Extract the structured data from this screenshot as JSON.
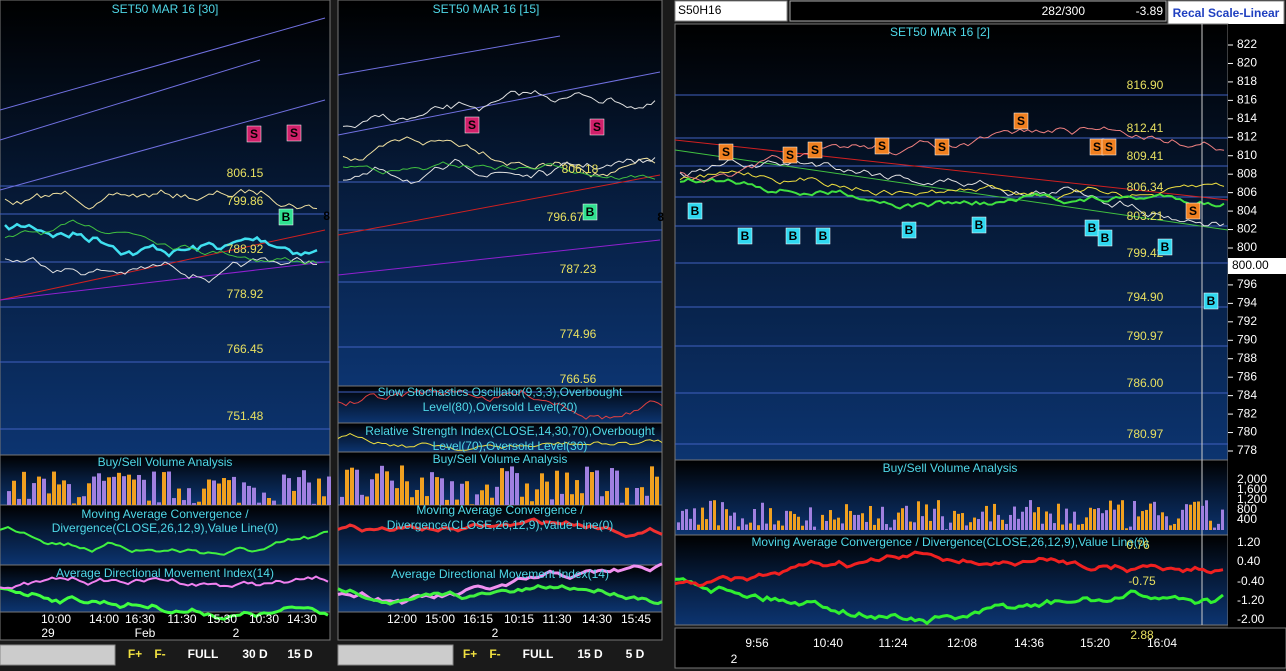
{
  "toolbar": {
    "symbol": "S50H16",
    "count": "282/300",
    "change": "-3.89",
    "scale_button": "Recal Scale-Linear"
  },
  "panels": [
    {
      "title": "SET50 MAR 16  [30]",
      "levels": [
        "806.15",
        "799.86",
        "788.92",
        "778.92",
        "766.45",
        "751.48"
      ],
      "signals": [
        "S",
        "S",
        "B"
      ],
      "indicators": [
        "Buy/Sell Volume Analysis",
        "Moving Average Convergence /",
        "Divergence(CLOSE,26,12,9),Value Line(0)",
        "Average Directional Movement Index(14)"
      ],
      "price_tag": "8",
      "times": [
        "10:00",
        "14:00",
        "16:30",
        "11:30",
        "15:30",
        "10:30",
        "14:30"
      ],
      "dates": [
        "29",
        "Feb",
        "2"
      ],
      "buttons": [
        "F+",
        "F-",
        "FULL",
        "30 D",
        "15 D"
      ]
    },
    {
      "title": "SET50 MAR 16  [15]",
      "levels": [
        "806.18",
        "796.67",
        "787.23",
        "774.96",
        "766.56"
      ],
      "signals": [
        "S",
        "S",
        "B"
      ],
      "indicators": [
        "Slow Stochastics Oscillator(9,3,3),Overbought",
        "Level(80),Oversold Level(20)",
        "Relative Strength Index(CLOSE,14,30,70),Overbought",
        "Level(70),Oversold Level(30)",
        "Buy/Sell Volume Analysis",
        "Moving Average Convergence /",
        "Divergence(CLOSE,26,12,9),Value Line(0)",
        "Average Directional Movement Index(14)"
      ],
      "price_tag": "8",
      "times": [
        "12:00",
        "15:00",
        "16:15",
        "10:15",
        "11:30",
        "14:30",
        "15:45"
      ],
      "dates": [
        "2"
      ],
      "buttons": [
        "F+",
        "F-",
        "FULL",
        "15 D",
        "5 D"
      ]
    },
    {
      "title": "SET50 MAR 16  [2]",
      "levels": [
        "816.90",
        "812.41",
        "809.41",
        "806.34",
        "803.21",
        "799.42",
        "794.90",
        "790.97",
        "786.00",
        "780.97"
      ],
      "signals": [
        "S",
        "S",
        "S",
        "S",
        "S",
        "S",
        "S",
        "S",
        "S",
        "B",
        "B",
        "B",
        "B",
        "B",
        "B",
        "B",
        "B",
        "B",
        "B"
      ],
      "indicators": [
        "Buy/Sell Volume Analysis",
        "Moving Average Convergence / Divergence(CLOSE,26,12,9),Value Line(0)"
      ],
      "price_axis": [
        "822",
        "820",
        "818",
        "816",
        "814",
        "812",
        "810",
        "808",
        "806",
        "804",
        "802",
        "800",
        "798",
        "796",
        "794",
        "792",
        "790",
        "788",
        "786",
        "784",
        "782",
        "780",
        "778"
      ],
      "price_tag": "800.00",
      "volume_axis": [
        "2,000",
        "1,600",
        "1,200",
        "800",
        "400"
      ],
      "macd_axis": [
        "1.20",
        "0.40",
        "-0.40",
        "-1.20",
        "-2.00"
      ],
      "macd_levels": [
        "0.76",
        "-0.75",
        "2.88"
      ],
      "times": [
        "9:56",
        "10:40",
        "11:24",
        "12:08",
        "14:36",
        "15:20",
        "16:04"
      ],
      "dates": [
        "2"
      ]
    }
  ]
}
